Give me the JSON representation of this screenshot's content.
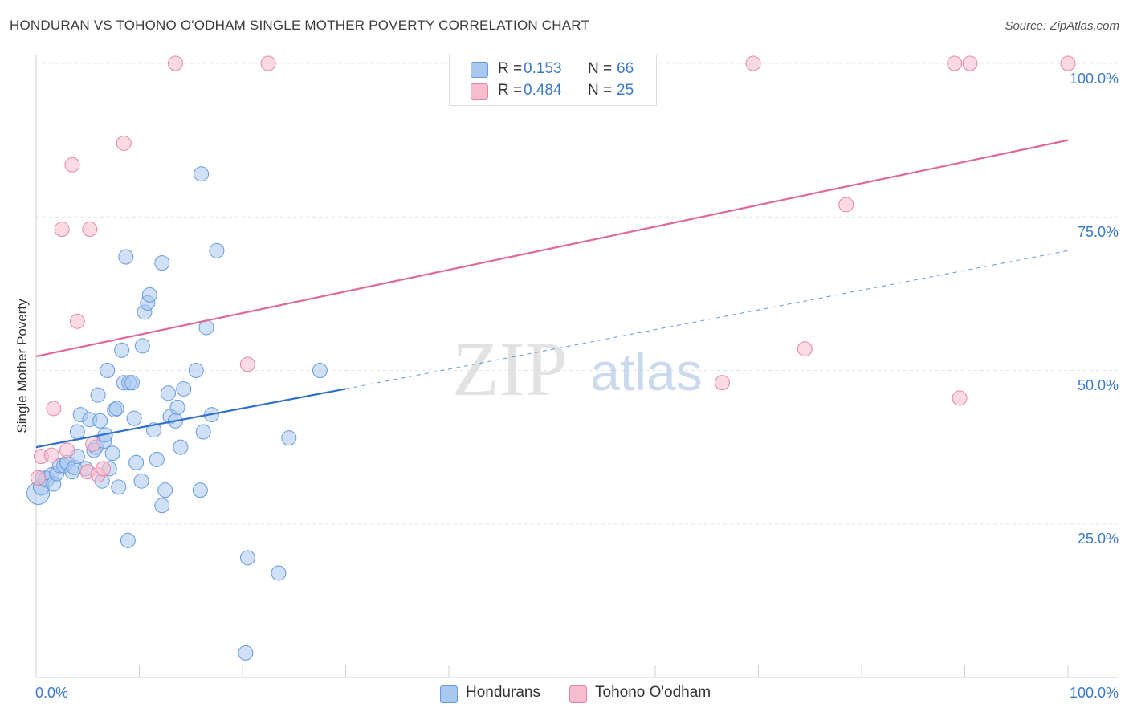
{
  "title": "HONDURAN VS TOHONO O'ODHAM SINGLE MOTHER POVERTY CORRELATION CHART",
  "source": "Source: ZipAtlas.com",
  "watermark": {
    "zip": "ZIP",
    "atlas": "atlas"
  },
  "legend": {
    "r_label": "R =",
    "n_label": "N =",
    "series": [
      {
        "name": "Hondurans",
        "r": "0.153",
        "n": "66",
        "fill": "#a9c8f0",
        "stroke": "#6699dd"
      },
      {
        "name": "Tohono O'odham",
        "r": "0.484",
        "n": "25",
        "fill": "#f7bccd",
        "stroke": "#e486a4"
      }
    ]
  },
  "chart_data": {
    "type": "scatter",
    "title": "HONDURAN VS TOHONO O'ODHAM SINGLE MOTHER POVERTY CORRELATION CHART",
    "xlabel": "",
    "ylabel": "Single Mother Poverty",
    "xlim": [
      0,
      100
    ],
    "ylim": [
      0,
      100
    ],
    "x_tick_labels": [
      "0.0%",
      "100.0%"
    ],
    "y_ticks": [
      25,
      50,
      75,
      100
    ],
    "y_tick_labels": [
      "25.0%",
      "50.0%",
      "75.0%",
      "100.0%"
    ],
    "grid": "horizontal dashed",
    "series": [
      {
        "name": "Hondurans",
        "color": "#6699dd",
        "fill": "#a9c8f0",
        "trend": {
          "x0": 0,
          "y0": 37.5,
          "x1": 30,
          "y1": 47.0,
          "dashed_to_x": 100,
          "dashed_to_y": 69.5,
          "color": "#2f6fd0"
        },
        "points": [
          [
            0.2,
            30.0,
            14
          ],
          [
            0.5,
            31.0,
            10
          ],
          [
            0.7,
            32.5,
            10
          ],
          [
            1.0,
            32.3,
            10
          ],
          [
            1.5,
            33.0,
            9
          ],
          [
            1.7,
            31.5,
            9
          ],
          [
            2.0,
            33.2,
            9
          ],
          [
            2.3,
            34.5,
            9
          ],
          [
            2.7,
            34.5,
            9
          ],
          [
            3.0,
            35.0,
            9
          ],
          [
            3.5,
            33.5,
            9
          ],
          [
            3.7,
            34.2,
            9
          ],
          [
            4.0,
            36.0,
            9
          ],
          [
            4.0,
            40.0,
            9
          ],
          [
            4.3,
            42.8,
            9
          ],
          [
            4.8,
            34.0,
            9
          ],
          [
            5.2,
            42.0,
            9
          ],
          [
            5.6,
            37.0,
            9
          ],
          [
            5.8,
            37.5,
            9
          ],
          [
            6.0,
            46.0,
            9
          ],
          [
            6.2,
            41.8,
            9
          ],
          [
            6.4,
            32.0,
            9
          ],
          [
            6.6,
            38.5,
            9
          ],
          [
            6.7,
            39.5,
            9
          ],
          [
            6.9,
            50.0,
            9
          ],
          [
            7.1,
            34.0,
            9
          ],
          [
            7.4,
            36.5,
            9
          ],
          [
            7.6,
            43.6,
            9
          ],
          [
            7.8,
            43.8,
            9
          ],
          [
            8.0,
            31.0,
            9
          ],
          [
            8.3,
            53.3,
            9
          ],
          [
            8.5,
            48.0,
            9
          ],
          [
            8.7,
            68.5,
            9
          ],
          [
            8.9,
            22.3,
            9
          ],
          [
            9.0,
            48.0,
            9
          ],
          [
            9.3,
            48.0,
            9
          ],
          [
            9.5,
            42.2,
            9
          ],
          [
            9.7,
            35.0,
            9
          ],
          [
            10.2,
            32.0,
            9
          ],
          [
            10.3,
            54.0,
            9
          ],
          [
            10.5,
            59.5,
            9
          ],
          [
            10.8,
            61.0,
            9
          ],
          [
            11.0,
            62.3,
            9
          ],
          [
            11.4,
            40.3,
            9
          ],
          [
            11.7,
            35.5,
            9
          ],
          [
            12.2,
            28.0,
            9
          ],
          [
            12.2,
            67.5,
            9
          ],
          [
            12.5,
            30.5,
            9
          ],
          [
            12.8,
            46.3,
            9
          ],
          [
            13.0,
            42.5,
            9
          ],
          [
            13.5,
            41.8,
            9
          ],
          [
            13.7,
            44.0,
            9
          ],
          [
            14.0,
            37.5,
            9
          ],
          [
            14.3,
            47.0,
            9
          ],
          [
            15.5,
            50.0,
            9
          ],
          [
            15.9,
            30.5,
            9
          ],
          [
            16.2,
            40.0,
            9
          ],
          [
            16.5,
            57.0,
            9
          ],
          [
            17.0,
            42.8,
            9
          ],
          [
            17.5,
            69.5,
            9
          ],
          [
            16.0,
            82.0,
            9
          ],
          [
            20.5,
            19.5,
            9
          ],
          [
            20.3,
            4.0,
            9
          ],
          [
            23.5,
            17.0,
            9
          ],
          [
            24.5,
            39.0,
            9
          ],
          [
            27.5,
            50.0,
            9
          ]
        ]
      },
      {
        "name": "Tohono O'odham",
        "color": "#e486a4",
        "fill": "#f7bccd",
        "trend": {
          "x0": 0,
          "y0": 52.3,
          "x1": 100,
          "y1": 87.5,
          "color": "#e0679a"
        },
        "points": [
          [
            0.5,
            36.0,
            9
          ],
          [
            1.5,
            36.2,
            9
          ],
          [
            1.7,
            43.8,
            9
          ],
          [
            2.5,
            73.0,
            9
          ],
          [
            3.0,
            37.0,
            9
          ],
          [
            3.5,
            83.5,
            9
          ],
          [
            4.0,
            58.0,
            9
          ],
          [
            5.0,
            33.5,
            9
          ],
          [
            5.2,
            73.0,
            9
          ],
          [
            5.5,
            38.0,
            9
          ],
          [
            6.0,
            33.0,
            9
          ],
          [
            6.5,
            34.0,
            9
          ],
          [
            8.5,
            87.0,
            9
          ],
          [
            13.5,
            100.0,
            9
          ],
          [
            20.5,
            51.0,
            9
          ],
          [
            22.5,
            100.0,
            9
          ],
          [
            66.5,
            48.0,
            9
          ],
          [
            69.5,
            100.0,
            9
          ],
          [
            74.5,
            53.5,
            9
          ],
          [
            78.5,
            77.0,
            9
          ],
          [
            89.0,
            100.0,
            9
          ],
          [
            89.5,
            45.5,
            9
          ],
          [
            90.5,
            100.0,
            9
          ],
          [
            100.0,
            100.0,
            9
          ],
          [
            0.2,
            32.5,
            9
          ]
        ]
      }
    ]
  }
}
